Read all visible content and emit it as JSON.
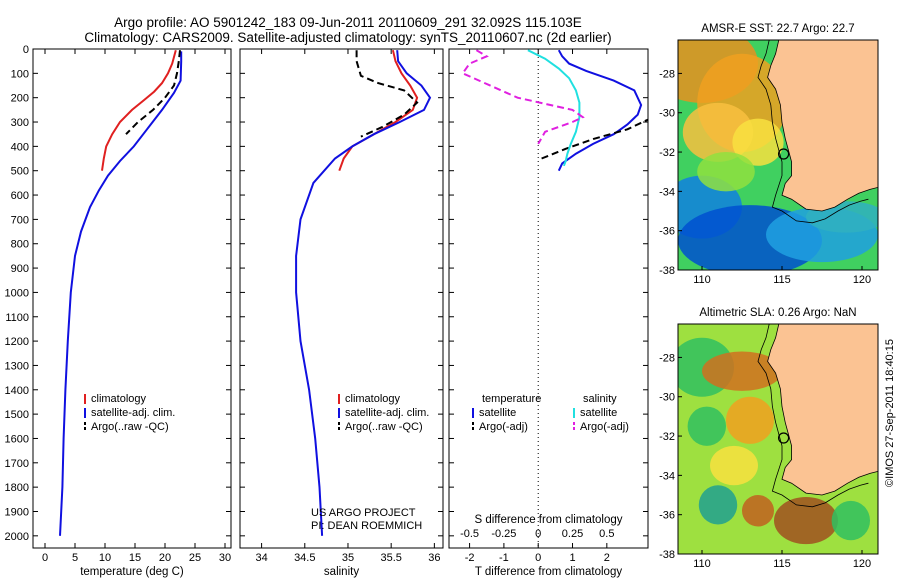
{
  "header": {
    "line1": "Argo profile: AO 5901242_183 09-Jun-2011 20110609_291 32.092S 115.103E",
    "line2": "Climatology: CARS2009. Satellite-adjusted climatology: synTS_20110607.nc (2d earlier)"
  },
  "credit": "©IMOS 27-Sep-2011 18:40:15",
  "colors": {
    "climatology": "#e02020",
    "satellite": "#1010e0",
    "argo": "#000000",
    "cyan": "#20e0e0",
    "magenta": "#e020e0"
  },
  "chart_data": [
    {
      "type": "line",
      "id": "temperature",
      "xlabel": "temperature (deg C)",
      "xlim": [
        -2,
        31
      ],
      "ylim": [
        0,
        2050
      ],
      "y_reversed": true,
      "xticks": [
        0,
        5,
        10,
        15,
        20,
        25,
        30
      ],
      "yticks": [
        0,
        100,
        200,
        300,
        400,
        500,
        600,
        700,
        800,
        900,
        1000,
        1100,
        1200,
        1300,
        1400,
        1500,
        1600,
        1700,
        1800,
        1900,
        2000
      ],
      "legend": [
        "climatology",
        "satellite-adj. clim.",
        "Argo(..raw -QC)"
      ],
      "series": [
        {
          "name": "climatology",
          "color": "climatology",
          "x": [
            21.8,
            21.2,
            20.5,
            19.5,
            18.2,
            16.5,
            14.5,
            12.5,
            11.2,
            10.2,
            9.8,
            9.5
          ],
          "y": [
            5,
            60,
            100,
            140,
            175,
            210,
            250,
            300,
            350,
            400,
            450,
            500
          ]
        },
        {
          "name": "satellite-adj. clim.",
          "color": "satellite",
          "x": [
            22.7,
            22.7,
            22.6,
            21.5,
            19.5,
            17,
            14.8,
            12.5,
            10.5,
            9,
            7.5,
            6,
            5,
            4.3,
            3.8,
            3.4,
            3.1,
            2.9,
            2.7,
            2.6,
            2.5
          ],
          "y": [
            10,
            50,
            130,
            180,
            250,
            330,
            400,
            460,
            520,
            580,
            650,
            750,
            850,
            1000,
            1200,
            1400,
            1600,
            1800,
            1900,
            1950,
            2000
          ]
        },
        {
          "name": "Argo(..raw -QC)",
          "color": "argo",
          "dashed": true,
          "x": [
            22.5,
            22.3,
            22,
            21.5,
            20,
            18,
            15.5,
            13.5
          ],
          "y": [
            5,
            50,
            100,
            150,
            200,
            250,
            300,
            350
          ]
        }
      ]
    },
    {
      "type": "line",
      "id": "salinity",
      "xlabel": "salinity",
      "xlim": [
        33.75,
        36.1
      ],
      "ylim": [
        0,
        2050
      ],
      "y_reversed": true,
      "xticks": [
        34,
        34.5,
        35,
        35.5,
        36
      ],
      "legend": [
        "climatology",
        "satellite-adj. clim.",
        "Argo(..raw -QC)"
      ],
      "annotations": [
        "US ARGO PROJECT",
        "PI: DEAN ROEMMICH"
      ],
      "series": [
        {
          "name": "climatology",
          "color": "climatology",
          "x": [
            35.52,
            35.55,
            35.62,
            35.72,
            35.8,
            35.75,
            35.55,
            35.3,
            35.05,
            34.95,
            34.9
          ],
          "y": [
            5,
            50,
            100,
            150,
            200,
            250,
            300,
            350,
            400,
            450,
            500
          ]
        },
        {
          "name": "satellite-adj. clim.",
          "color": "satellite",
          "x": [
            35.57,
            35.58,
            35.68,
            35.85,
            35.95,
            35.88,
            35.6,
            35.3,
            35.05,
            34.85,
            34.6,
            34.45,
            34.4,
            34.4,
            34.45,
            34.55,
            34.62,
            34.67,
            34.7
          ],
          "y": [
            5,
            50,
            100,
            150,
            200,
            250,
            300,
            350,
            400,
            450,
            550,
            700,
            850,
            1000,
            1200,
            1400,
            1600,
            1800,
            2000
          ]
        },
        {
          "name": "Argo(..raw -QC)",
          "color": "argo",
          "dashed": true,
          "x": [
            35.1,
            35.1,
            35.15,
            35.35,
            35.65,
            35.8,
            35.65,
            35.4,
            35.15
          ],
          "y": [
            5,
            50,
            110,
            140,
            170,
            220,
            270,
            320,
            360
          ]
        }
      ]
    },
    {
      "type": "line",
      "id": "difference",
      "xlabel": "T difference from climatology",
      "xlabel_top": "S difference from climatology",
      "xlim": [
        -2.6,
        3.2
      ],
      "ylim": [
        0,
        2050
      ],
      "y_reversed": true,
      "xticks": [
        -2,
        -1,
        0,
        1,
        2
      ],
      "xticks_s": [
        -0.5,
        -0.25,
        0,
        0.25,
        0.5
      ],
      "legend_titles": [
        "temperature",
        "salinity"
      ],
      "legend": [
        "satellite",
        "Argo(-adj)",
        "satellite",
        "Argo(-adj)"
      ],
      "series": [
        {
          "name": "satellite",
          "group": "temperature",
          "color": "satellite",
          "x": [
            0.6,
            0.7,
            0.9,
            1.4,
            2.2,
            2.8,
            3.0,
            2.9,
            2.6,
            2.2,
            1.6,
            1.1,
            0.7,
            0.6
          ],
          "y": [
            5,
            30,
            60,
            90,
            130,
            170,
            230,
            270,
            310,
            350,
            390,
            430,
            470,
            500
          ]
        },
        {
          "name": "Argo(-adj)",
          "group": "temperature",
          "color": "argo",
          "dashed": true,
          "x": [
            0.1,
            0.8,
            1.6,
            2.6,
            3.2
          ],
          "y": [
            450,
            410,
            370,
            330,
            290
          ]
        },
        {
          "name": "satellite",
          "group": "salinity",
          "color": "cyan",
          "x": [
            -0.3,
            0.2,
            0.6,
            0.9,
            1.1,
            1.2,
            1.2,
            1.1,
            0.95,
            0.85,
            0.8,
            0.75
          ],
          "y": [
            5,
            40,
            80,
            120,
            170,
            220,
            280,
            340,
            390,
            430,
            460,
            480
          ]
        },
        {
          "name": "Argo(-adj)",
          "group": "salinity",
          "color": "magenta",
          "dashed": true,
          "x": [
            -1.8,
            -1.5,
            -2.0,
            -2.2,
            -0.6,
            1.0,
            1.3,
            1.0,
            0.2,
            0.0
          ],
          "y": [
            5,
            30,
            60,
            100,
            200,
            250,
            280,
            300,
            340,
            390
          ]
        }
      ]
    },
    {
      "type": "heatmap",
      "id": "sst-map",
      "title": "AMSR-E SST: 22.7 Argo: 22.7",
      "xlim": [
        108.5,
        121
      ],
      "ylim": [
        -38,
        -26.3
      ],
      "xticks": [
        110,
        115,
        120
      ],
      "yticks": [
        -28,
        -30,
        -32,
        -34,
        -36,
        -38
      ],
      "marker": {
        "lon": 115.1,
        "lat": -32.1
      }
    },
    {
      "type": "heatmap",
      "id": "sla-map",
      "title": "Altimetric SLA: 0.26 Argo: NaN",
      "xlim": [
        108.5,
        121
      ],
      "ylim": [
        -38,
        -26.3
      ],
      "xticks": [
        110,
        115,
        120
      ],
      "yticks": [
        -28,
        -30,
        -32,
        -34,
        -36,
        -38
      ],
      "marker": {
        "lon": 115.1,
        "lat": -32.1
      }
    }
  ]
}
